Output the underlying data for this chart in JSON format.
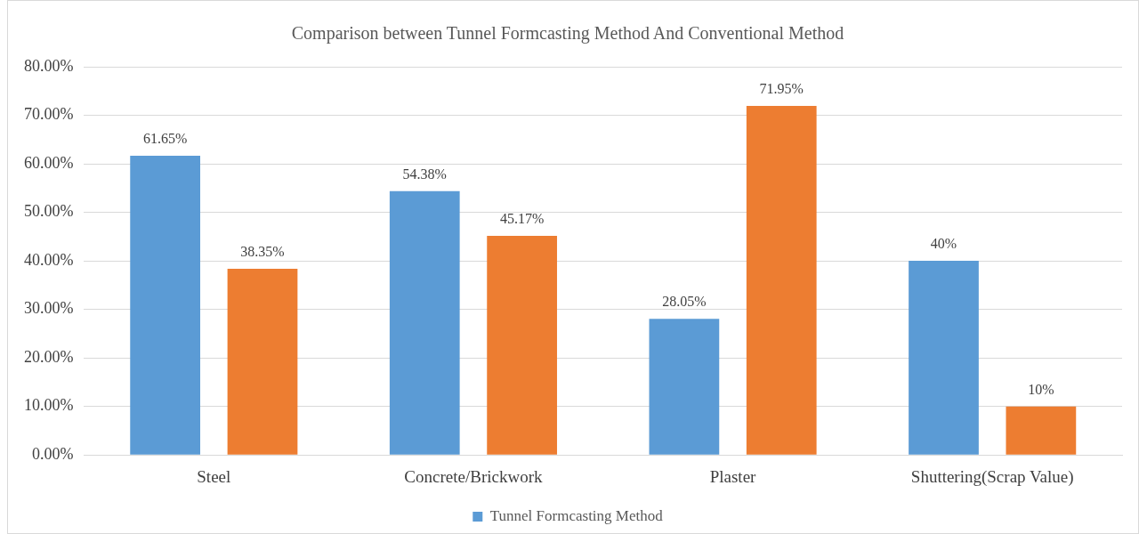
{
  "chart_data": {
    "type": "bar",
    "title": "Comparison between Tunnel Formcasting Method And Conventional Method",
    "categories": [
      "Steel",
      "Concrete/Brickwork",
      "Plaster",
      "Shuttering(Scrap Value)"
    ],
    "series": [
      {
        "name": "Tunnel Formcasting Method",
        "color": "#5b9bd5",
        "values": [
          61.65,
          54.38,
          28.05,
          40
        ],
        "value_labels": [
          "61.65%",
          "54.38%",
          "28.05%",
          "40%"
        ]
      },
      {
        "color": "#ed7d31",
        "values": [
          38.35,
          45.17,
          71.95,
          10
        ],
        "value_labels": [
          "38.35%",
          "45.17%",
          "71.95%",
          "10%"
        ]
      }
    ],
    "ylim": [
      0,
      80
    ],
    "yticks": [
      {
        "value": 0,
        "label": "0.00%"
      },
      {
        "value": 10,
        "label": "10.00%"
      },
      {
        "value": 20,
        "label": "20.00%"
      },
      {
        "value": 30,
        "label": "30.00%"
      },
      {
        "value": 40,
        "label": "40.00%"
      },
      {
        "value": 50,
        "label": "50.00%"
      },
      {
        "value": 60,
        "label": "60.00%"
      },
      {
        "value": 70,
        "label": "70.00%"
      },
      {
        "value": 80,
        "label": "80.00%"
      }
    ],
    "grid": "y",
    "legend": "bottom"
  }
}
